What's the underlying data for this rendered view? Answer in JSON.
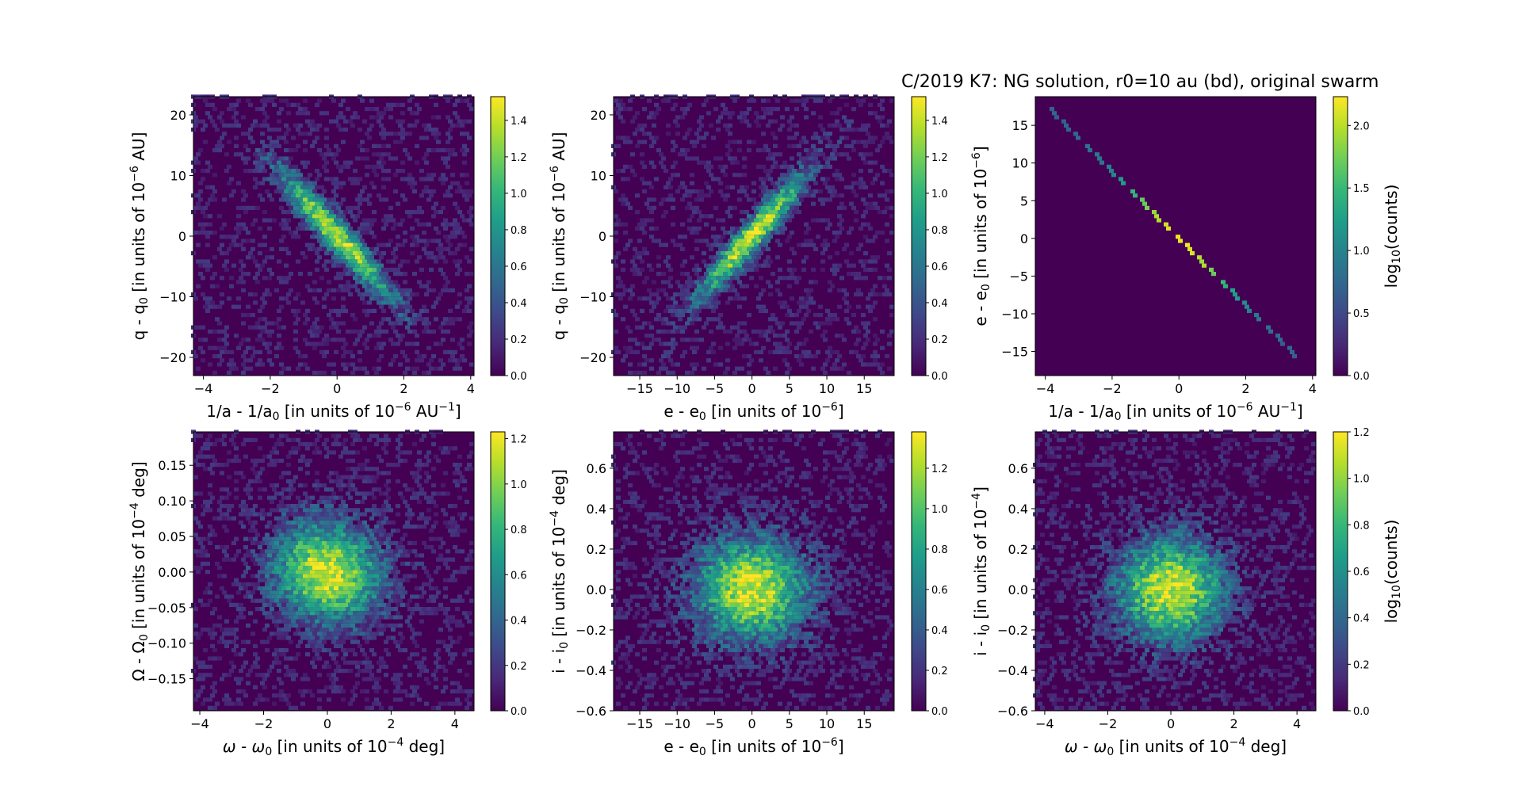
{
  "figure_title": "C/2019 K7: NG solution, r0=10 au (bd), original swarm",
  "chart_data": [
    {
      "id": "p1",
      "type": "heatmap",
      "kind": "hexbin",
      "xlabel": "1/a - 1/a_0 [in units of 10^-6 AU^-1]",
      "ylabel": "q - q_0 [in units of 10^-6 AU]",
      "xlim": [
        -4.3,
        4.1
      ],
      "ylim": [
        -23,
        23
      ],
      "xticks": [
        -4,
        -2,
        0,
        2,
        4
      ],
      "yticks": [
        -20,
        -10,
        0,
        10,
        20
      ],
      "xtick_labels": [
        "−4",
        "−2",
        "0",
        "2",
        "4"
      ],
      "ytick_labels": [
        "−20",
        "−10",
        "0",
        "10",
        "20"
      ],
      "distribution": {
        "mean_x": 0,
        "mean_y": 0,
        "sd_x": 1.2,
        "sd_y": 7.5,
        "correlation": -0.95
      },
      "colorbar": {
        "label": "",
        "min": 0.0,
        "max": 1.53,
        "ticks": [
          0.0,
          0.2,
          0.4,
          0.6,
          0.8,
          1.0,
          1.2,
          1.4
        ],
        "tick_labels": [
          "0.0",
          "0.2",
          "0.4",
          "0.6",
          "0.8",
          "1.0",
          "1.2",
          "1.4"
        ]
      }
    },
    {
      "id": "p2",
      "type": "heatmap",
      "kind": "hexbin",
      "xlabel": "e - e_0 [in units of 10^-6]",
      "ylabel": "q - q_0 [in units of 10^-6 AU]",
      "xlim": [
        -18.5,
        19
      ],
      "ylim": [
        -23,
        23
      ],
      "xticks": [
        -15,
        -10,
        -5,
        0,
        5,
        10,
        15
      ],
      "yticks": [
        -20,
        -10,
        0,
        10,
        20
      ],
      "xtick_labels": [
        "−15",
        "−10",
        "−5",
        "0",
        "5",
        "10",
        "15"
      ],
      "ytick_labels": [
        "−20",
        "−10",
        "0",
        "10",
        "20"
      ],
      "distribution": {
        "mean_x": 0,
        "mean_y": 0,
        "sd_x": 5.3,
        "sd_y": 7.5,
        "correlation": 0.95
      },
      "colorbar": {
        "label": "",
        "min": 0.0,
        "max": 1.53,
        "ticks": [
          0.0,
          0.2,
          0.4,
          0.6,
          0.8,
          1.0,
          1.2,
          1.4
        ],
        "tick_labels": [
          "0.0",
          "0.2",
          "0.4",
          "0.6",
          "0.8",
          "1.0",
          "1.2",
          "1.4"
        ]
      }
    },
    {
      "id": "p3",
      "type": "heatmap",
      "kind": "hexbin",
      "xlabel": "1/a - 1/a_0 [in units of 10^-6 AU^-1]",
      "ylabel": "e - e_0 [in units of 10^-6]",
      "xlim": [
        -4.3,
        4.1
      ],
      "ylim": [
        -18.2,
        18.8
      ],
      "xticks": [
        -4,
        -2,
        0,
        2,
        4
      ],
      "yticks": [
        -15,
        -10,
        -5,
        0,
        5,
        10,
        15
      ],
      "xtick_labels": [
        "−4",
        "−2",
        "0",
        "2",
        "4"
      ],
      "ytick_labels": [
        "−15",
        "−10",
        "−5",
        "0",
        "5",
        "10",
        "15"
      ],
      "line_relation": {
        "slope": -4.45,
        "x_min": -3.9,
        "x_max": 3.5,
        "sd_x": 1.2
      },
      "colorbar": {
        "label": "log_10(counts)",
        "min": 0.0,
        "max": 2.23,
        "ticks": [
          0.0,
          0.5,
          1.0,
          1.5,
          2.0
        ],
        "tick_labels": [
          "0.0",
          "0.5",
          "1.0",
          "1.5",
          "2.0"
        ]
      }
    },
    {
      "id": "p4",
      "type": "heatmap",
      "kind": "hexbin",
      "xlabel": "ω - ω_0 [in units of 10^-4 deg]",
      "ylabel": "Ω - Ω_0 [in units of 10^-4 deg]",
      "xlim": [
        -4.2,
        4.6
      ],
      "ylim": [
        -0.195,
        0.197
      ],
      "xticks": [
        -4,
        -2,
        0,
        2,
        4
      ],
      "yticks": [
        -0.15,
        -0.1,
        -0.05,
        0.0,
        0.05,
        0.1,
        0.15
      ],
      "xtick_labels": [
        "−4",
        "−2",
        "0",
        "2",
        "4"
      ],
      "ytick_labels": [
        "−0.15",
        "−0.10",
        "−0.05",
        "0.00",
        "0.05",
        "0.10",
        "0.15"
      ],
      "distribution": {
        "mean_x": 0,
        "mean_y": 0,
        "sd_x": 1.2,
        "sd_y": 0.05,
        "correlation": -0.1
      },
      "colorbar": {
        "label": "",
        "min": 0.0,
        "max": 1.23,
        "ticks": [
          0.0,
          0.2,
          0.4,
          0.6,
          0.8,
          1.0,
          1.2
        ],
        "tick_labels": [
          "0.0",
          "0.2",
          "0.4",
          "0.6",
          "0.8",
          "1.0",
          "1.2"
        ]
      }
    },
    {
      "id": "p5",
      "type": "heatmap",
      "kind": "hexbin",
      "xlabel": "e - e_0 [in units of 10^-6]",
      "ylabel": "i - i_0 [in units of 10^-4 deg]",
      "xlim": [
        -18.5,
        19
      ],
      "ylim": [
        -0.6,
        0.78
      ],
      "xticks": [
        -15,
        -10,
        -5,
        0,
        5,
        10,
        15
      ],
      "yticks": [
        -0.6,
        -0.4,
        -0.2,
        0.0,
        0.2,
        0.4,
        0.6
      ],
      "xtick_labels": [
        "−15",
        "−10",
        "−5",
        "0",
        "5",
        "10",
        "15"
      ],
      "ytick_labels": [
        "−0.6",
        "−0.4",
        "−0.2",
        "0.0",
        "0.2",
        "0.4",
        "0.6"
      ],
      "distribution": {
        "mean_x": 0,
        "mean_y": 0,
        "sd_x": 5.3,
        "sd_y": 0.18,
        "correlation": 0.0
      },
      "colorbar": {
        "label": "",
        "min": 0.0,
        "max": 1.38,
        "ticks": [
          0.0,
          0.2,
          0.4,
          0.6,
          0.8,
          1.0,
          1.2
        ],
        "tick_labels": [
          "0.0",
          "0.2",
          "0.4",
          "0.6",
          "0.8",
          "1.0",
          "1.2"
        ]
      }
    },
    {
      "id": "p6",
      "type": "heatmap",
      "kind": "hexbin",
      "xlabel": "ω - ω_0 [in units of 10^-4 deg]",
      "ylabel": "i - i_0 [in units of 10^-4]",
      "xlim": [
        -4.3,
        4.6
      ],
      "ylim": [
        -0.6,
        0.78
      ],
      "xticks": [
        -4,
        -2,
        0,
        2,
        4
      ],
      "yticks": [
        -0.6,
        -0.4,
        -0.2,
        0.0,
        0.2,
        0.4,
        0.6
      ],
      "xtick_labels": [
        "−4",
        "−2",
        "0",
        "2",
        "4"
      ],
      "ytick_labels": [
        "−0.6",
        "−0.4",
        "−0.2",
        "0.0",
        "0.2",
        "0.4",
        "0.6"
      ],
      "distribution": {
        "mean_x": 0,
        "mean_y": 0,
        "sd_x": 1.2,
        "sd_y": 0.18,
        "correlation": 0.0
      },
      "colorbar": {
        "label": "log_10(counts)",
        "min": 0.0,
        "max": 1.2,
        "ticks": [
          0.0,
          0.2,
          0.4,
          0.6,
          0.8,
          1.0,
          1.2
        ],
        "tick_labels": [
          "0.0",
          "0.2",
          "0.4",
          "0.6",
          "0.8",
          "1.0",
          "1.2"
        ]
      }
    }
  ],
  "text": {
    "p1": {
      "xlabel_main": "1/a - 1/a",
      "xlabel_sub": "0",
      "xlabel_mid": " [in units of 10",
      "xlabel_sup": "−6",
      "xlabel_unit": " AU",
      "xlabel_sup2": "−1",
      "xlabel_end": "]",
      "ylabel_main": "q - q",
      "ylabel_sub": "0",
      "ylabel_mid": " [in units of 10",
      "ylabel_sup": "−6",
      "ylabel_end": " AU]"
    },
    "p2": {
      "xlabel_main": "e - e",
      "xlabel_sub": "0",
      "xlabel_mid": " [in units of 10",
      "xlabel_sup": "−6",
      "xlabel_end": "]",
      "ylabel_main": "q - q",
      "ylabel_sub": "0",
      "ylabel_mid": " [in units of 10",
      "ylabel_sup": "−6",
      "ylabel_end": " AU]"
    },
    "p3": {
      "xlabel_main": "1/a - 1/a",
      "xlabel_sub": "0",
      "xlabel_mid": " [in units of 10",
      "xlabel_sup": "−6",
      "xlabel_unit": " AU",
      "xlabel_sup2": "−1",
      "xlabel_end": "]",
      "ylabel_main": "e - e",
      "ylabel_sub": "0",
      "ylabel_mid": " [in units of 10",
      "ylabel_sup": "−6",
      "ylabel_end": "]",
      "cblabel_main": "log",
      "cblabel_sub": "10",
      "cblabel_end": "(counts)"
    },
    "p4": {
      "xlabel_main": "ω - ω",
      "xlabel_sub": "0",
      "xlabel_mid": " [in units of 10",
      "xlabel_sup": "−4",
      "xlabel_end": " deg]",
      "ylabel_main": "Ω - Ω",
      "ylabel_sub": "0",
      "ylabel_mid": " [in units of 10",
      "ylabel_sup": "−4",
      "ylabel_end": " deg]"
    },
    "p5": {
      "xlabel_main": "e - e",
      "xlabel_sub": "0",
      "xlabel_mid": " [in units of 10",
      "xlabel_sup": "−6",
      "xlabel_end": "]",
      "ylabel_main": "i - i",
      "ylabel_sub": "0",
      "ylabel_mid": " [in units of 10",
      "ylabel_sup": "−4",
      "ylabel_end": " deg]"
    },
    "p6": {
      "xlabel_main": "ω - ω",
      "xlabel_sub": "0",
      "xlabel_mid": " [in units of 10",
      "xlabel_sup": "−4",
      "xlabel_end": " deg]",
      "ylabel_main": "i - i",
      "ylabel_sub": "0",
      "ylabel_mid": " [in units of 10",
      "ylabel_sup": "−4",
      "ylabel_end": "]",
      "cblabel_main": "log",
      "cblabel_sub": "10",
      "cblabel_end": "(counts)"
    }
  },
  "colors": {
    "background": "#ffffff",
    "viridis": [
      "#440154",
      "#482878",
      "#3e4989",
      "#31688e",
      "#26828e",
      "#1f9e89",
      "#35b779",
      "#6ece58",
      "#b5de2b",
      "#fde725"
    ]
  }
}
